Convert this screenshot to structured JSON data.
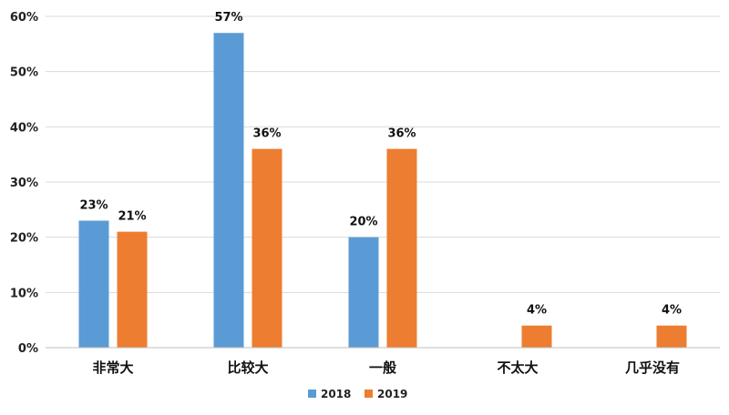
{
  "chart_data": {
    "type": "bar",
    "title": "",
    "xlabel": "",
    "ylabel": "",
    "categories": [
      "非常大",
      "比较大",
      "一般",
      "不太大",
      "几乎没有"
    ],
    "series": [
      {
        "name": "2018",
        "color": "#5b9bd5",
        "values": [
          23,
          57,
          20,
          null,
          null
        ],
        "labels": [
          "23%",
          "57%",
          "20%",
          "",
          ""
        ]
      },
      {
        "name": "2019",
        "color": "#ed7d31",
        "values": [
          21,
          36,
          36,
          4,
          4
        ],
        "labels": [
          "21%",
          "36%",
          "36%",
          "4%",
          "4%"
        ]
      }
    ],
    "ylim": [
      0,
      60
    ],
    "yticks": [
      0,
      10,
      20,
      30,
      40,
      50,
      60
    ],
    "ytick_labels": [
      "0%",
      "10%",
      "20%",
      "30%",
      "40%",
      "50%",
      "60%"
    ],
    "grid": true,
    "legend_position": "bottom"
  }
}
